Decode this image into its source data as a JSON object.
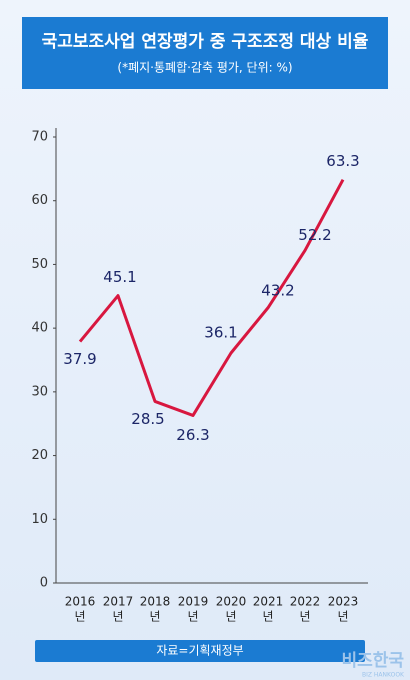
{
  "chart_data": {
    "type": "line",
    "title": "국고보조사업 연장평가 중 구조조정 대상 비율",
    "subtitle": "(*폐지·통폐합·감축 평가, 단위: %)",
    "categories": [
      "2016",
      "2017",
      "2018",
      "2019",
      "2020",
      "2021",
      "2022",
      "2023"
    ],
    "x_unit": "년",
    "values": [
      37.9,
      45.1,
      28.5,
      26.3,
      36.1,
      43.2,
      52.2,
      63.3
    ],
    "color": "#d8173f",
    "ylim": [
      0,
      70
    ],
    "yticks": [
      0,
      10,
      20,
      30,
      40,
      50,
      60,
      70
    ],
    "source": "자료=기획재정부",
    "watermark": "비즈한국",
    "watermark_sub": "BIZ HANKOOK"
  }
}
